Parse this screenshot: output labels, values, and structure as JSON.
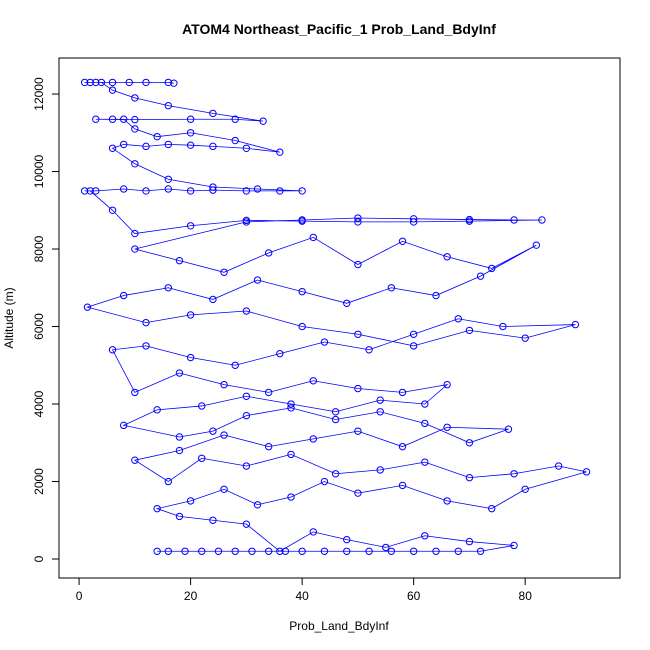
{
  "chart_data": {
    "type": "line",
    "title": "ATOM4 Northeast_Pacific_1 Prob_Land_BdyInf",
    "x_label": "Prob_Land_BdyInf",
    "y_label": "Altitude (m)",
    "color": "#0000ff",
    "marker": "open-circle",
    "xlim": [
      -3.6,
      97
    ],
    "ylim": [
      -490,
      12930
    ],
    "xticks": [
      0,
      20,
      40,
      60,
      80
    ],
    "yticks": [
      0,
      2000,
      4000,
      6000,
      8000,
      10000,
      12000
    ],
    "x": [
      14,
      16,
      19,
      22,
      25,
      28,
      31,
      34,
      37,
      40,
      44,
      48,
      52,
      56,
      60,
      64,
      68,
      72,
      78,
      70,
      62,
      55,
      48,
      42,
      36,
      30,
      24,
      18,
      14,
      20,
      26,
      32,
      38,
      44,
      50,
      58,
      66,
      74,
      80,
      91,
      86,
      78,
      70,
      62,
      54,
      46,
      38,
      30,
      22,
      16,
      10,
      18,
      26,
      34,
      42,
      50,
      58,
      66,
      77,
      70,
      62,
      54,
      46,
      38,
      30,
      24,
      18,
      8,
      14,
      22,
      30,
      38,
      46,
      54,
      62,
      66,
      58,
      50,
      42,
      34,
      26,
      18,
      10,
      6,
      12,
      20,
      28,
      36,
      44,
      52,
      60,
      68,
      76,
      89,
      80,
      70,
      60,
      50,
      40,
      30,
      20,
      12,
      1.5,
      8,
      16,
      24,
      32,
      40,
      48,
      56,
      64,
      72,
      82,
      74,
      66,
      58,
      50,
      42,
      34,
      26,
      18,
      10,
      30,
      40,
      50,
      60,
      70,
      78,
      83,
      70,
      60,
      50,
      40,
      30,
      20,
      10,
      6,
      2,
      1,
      3,
      8,
      12,
      16,
      20,
      24,
      30,
      36,
      40,
      32,
      24,
      16,
      10,
      6,
      8,
      12,
      16,
      20,
      24,
      30,
      36,
      28,
      20,
      14,
      10,
      8,
      6,
      3,
      10,
      20,
      28,
      33,
      24,
      16,
      10,
      6,
      4,
      2,
      1,
      3,
      6,
      9,
      12,
      16,
      17
    ],
    "y": [
      200,
      200,
      200,
      200,
      200,
      200,
      200,
      200,
      200,
      200,
      200,
      200,
      200,
      200,
      200,
      200,
      200,
      200,
      350,
      450,
      600,
      300,
      500,
      700,
      200,
      900,
      1000,
      1100,
      1300,
      1500,
      1800,
      1400,
      1600,
      2000,
      1700,
      1900,
      1500,
      1300,
      1800,
      2250,
      2400,
      2200,
      2100,
      2500,
      2300,
      2200,
      2700,
      2400,
      2600,
      2000,
      2550,
      2800,
      3200,
      2900,
      3100,
      3300,
      2900,
      3400,
      3350,
      3000,
      3500,
      3800,
      3600,
      3900,
      3700,
      3300,
      3150,
      3450,
      3850,
      3950,
      4200,
      4000,
      3800,
      4100,
      4000,
      4500,
      4300,
      4400,
      4600,
      4300,
      4500,
      4800,
      4300,
      5400,
      5500,
      5200,
      5000,
      5300,
      5600,
      5400,
      5800,
      6200,
      6000,
      6050,
      5700,
      5900,
      5500,
      5800,
      6000,
      6400,
      6300,
      6100,
      6500,
      6800,
      7000,
      6700,
      7200,
      6900,
      6600,
      7000,
      6800,
      7300,
      8100,
      7500,
      7800,
      8200,
      7600,
      8300,
      7900,
      7400,
      7700,
      8000,
      8700,
      8750,
      8800,
      8780,
      8760,
      8750,
      8750,
      8720,
      8700,
      8700,
      8720,
      8740,
      8600,
      8400,
      9000,
      9500,
      9500,
      9500,
      9550,
      9500,
      9550,
      9500,
      9520,
      9500,
      9500,
      9500,
      9550,
      9600,
      9800,
      10200,
      10600,
      10700,
      10650,
      10700,
      10680,
      10650,
      10600,
      10500,
      10800,
      11000,
      10900,
      11100,
      11350,
      11350,
      11350,
      11340,
      11350,
      11350,
      11300,
      11500,
      11700,
      11900,
      12100,
      12300,
      12300,
      12300,
      12300,
      12300,
      12300,
      12300,
      12300,
      12280
    ]
  }
}
